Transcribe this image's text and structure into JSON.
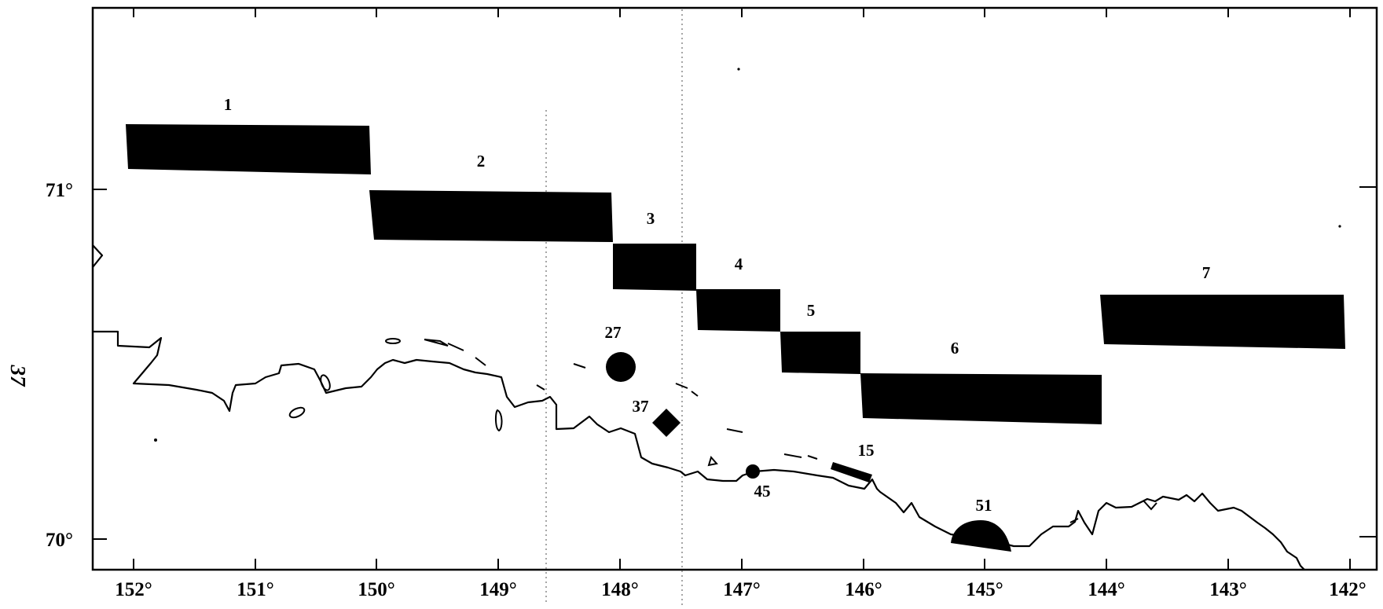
{
  "page_label": "37",
  "axes": {
    "longitude_ticks": [
      "152°",
      "151°",
      "150°",
      "149°",
      "148°",
      "147°",
      "146°",
      "145°",
      "144°",
      "143°",
      "142°"
    ],
    "latitude_ticks": [
      "71°",
      "70°"
    ]
  },
  "lease_blocks": [
    {
      "label": "1"
    },
    {
      "label": "2"
    },
    {
      "label": "3"
    },
    {
      "label": "4"
    },
    {
      "label": "5"
    },
    {
      "label": "6"
    },
    {
      "label": "7"
    }
  ],
  "sites": [
    {
      "label": "27",
      "shape": "circle"
    },
    {
      "label": "37",
      "shape": "diamond"
    },
    {
      "label": "45",
      "shape": "circle"
    },
    {
      "label": "15",
      "shape": "bar"
    },
    {
      "label": "51",
      "shape": "half-disc"
    }
  ],
  "colors": {
    "ink": "#000000",
    "paper": "#ffffff",
    "meridian": "#777777"
  }
}
